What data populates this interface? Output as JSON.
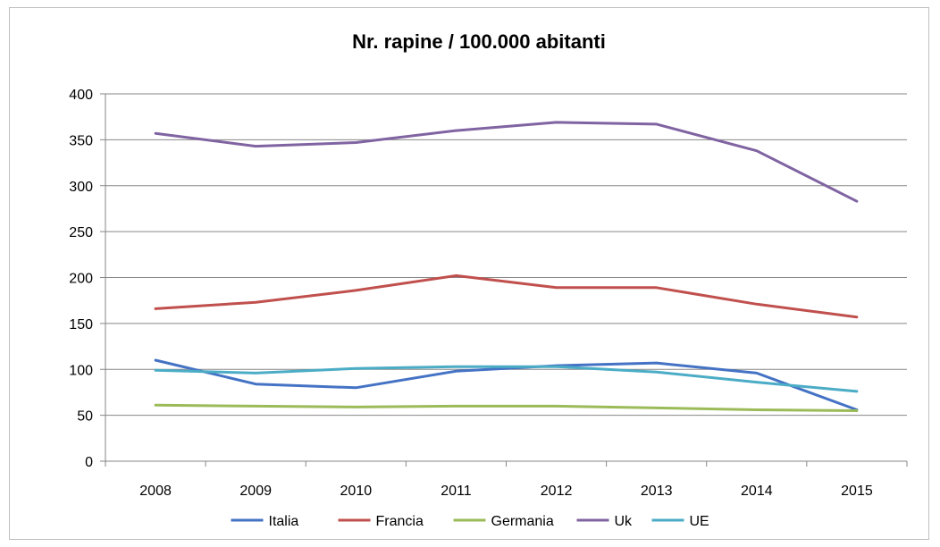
{
  "chart_data": {
    "type": "line",
    "title": "Nr. rapine / 100.000 abitanti",
    "xlabel": "",
    "ylabel": "",
    "categories": [
      "2008",
      "2009",
      "2010",
      "2011",
      "2012",
      "2013",
      "2014",
      "2015"
    ],
    "ylim": [
      0,
      400
    ],
    "yticks": [
      0,
      50,
      100,
      150,
      200,
      250,
      300,
      350,
      400
    ],
    "grid": true,
    "legend_position": "bottom",
    "series": [
      {
        "name": "Italia",
        "color": "#4472c4",
        "values": [
          110,
          84,
          80,
          98,
          104,
          107,
          96,
          56
        ]
      },
      {
        "name": "Francia",
        "color": "#c0504d",
        "values": [
          166,
          173,
          186,
          202,
          189,
          189,
          171,
          157
        ]
      },
      {
        "name": "Germania",
        "color": "#9bbb59",
        "values": [
          61,
          60,
          59,
          60,
          60,
          58,
          56,
          55
        ]
      },
      {
        "name": "Uk",
        "color": "#8064a2",
        "values": [
          357,
          343,
          347,
          360,
          369,
          367,
          338,
          283
        ]
      },
      {
        "name": "UE",
        "color": "#4bacc6",
        "values": [
          99,
          96,
          101,
          103,
          103,
          97,
          86,
          76
        ]
      }
    ]
  }
}
